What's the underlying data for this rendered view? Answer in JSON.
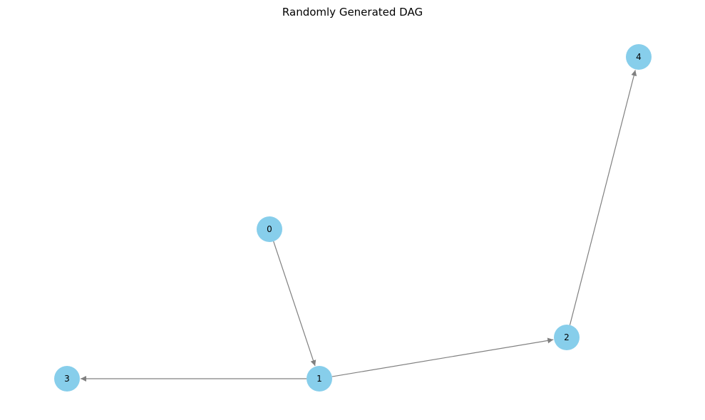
{
  "title": "Randomly Generated DAG",
  "colors": {
    "node_fill": "#87CEEB",
    "edge_stroke": "#808080",
    "label": "#000000"
  },
  "graph": {
    "nodes": [
      {
        "id": "0",
        "label": "0"
      },
      {
        "id": "1",
        "label": "1"
      },
      {
        "id": "2",
        "label": "2"
      },
      {
        "id": "3",
        "label": "3"
      },
      {
        "id": "4",
        "label": "4"
      }
    ],
    "edges": [
      {
        "from": "0",
        "to": "1"
      },
      {
        "from": "1",
        "to": "3"
      },
      {
        "from": "1",
        "to": "2"
      },
      {
        "from": "2",
        "to": "4"
      }
    ]
  }
}
